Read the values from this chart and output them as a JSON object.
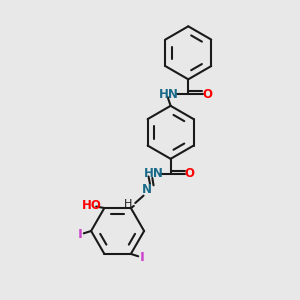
{
  "background_color": "#e8e8e8",
  "bond_color": "#1a1a1a",
  "N_color": "#1a6b8a",
  "O_color": "#ff0000",
  "I_color": "#cc44cc",
  "figsize": [
    3.0,
    3.0
  ],
  "dpi": 100,
  "xlim": [
    0,
    10
  ],
  "ylim": [
    0,
    10
  ],
  "lw": 1.5,
  "fs": 8.5
}
